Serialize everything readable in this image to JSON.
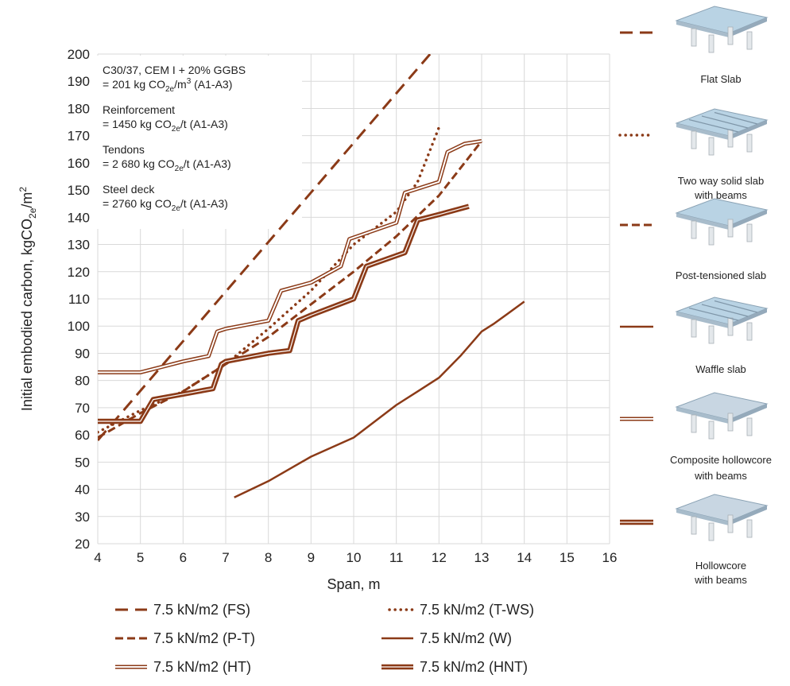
{
  "chart_data": {
    "type": "line",
    "title": "",
    "xlabel": "Span, m",
    "ylabel_main": "Initial embodied carbon, kgCO",
    "ylabel_sub": "2e",
    "ylabel_tail": "/m",
    "ylabel_sup": "2",
    "xlim": [
      4,
      16
    ],
    "ylim": [
      20,
      200
    ],
    "xticks": [
      4,
      5,
      6,
      7,
      8,
      9,
      10,
      11,
      12,
      13,
      14,
      15,
      16
    ],
    "yticks": [
      20,
      30,
      40,
      50,
      60,
      70,
      80,
      90,
      100,
      110,
      120,
      130,
      140,
      150,
      160,
      170,
      180,
      190,
      200
    ],
    "grid": true,
    "legend_position": "bottom",
    "colors": {
      "series": "#8B3A17",
      "grid": "#d9d9d9"
    },
    "notes": [
      {
        "line1": "C30/37, CEM I + 20% GGBS",
        "line2_pre": "= 201 kg CO",
        "line2_sub": "2e",
        "line2_mid": "/m",
        "line2_sup": "3",
        "line2_post": " (A1-A3)"
      },
      {
        "line1": "Reinforcement",
        "line2_pre": "= 1450 kg CO",
        "line2_sub": "2e",
        "line2_mid": "/t (A1-A3)",
        "line2_sup": "",
        "line2_post": ""
      },
      {
        "line1": "Tendons",
        "line2_pre": "= 2 680 kg CO",
        "line2_sub": "2e",
        "line2_mid": "/t (A1-A3)",
        "line2_sup": "",
        "line2_post": ""
      },
      {
        "line1": "Steel deck",
        "line2_pre": "= 2760 kg CO",
        "line2_sub": "2e",
        "line2_mid": "/t (A1-A3)",
        "line2_sup": "",
        "line2_post": ""
      }
    ],
    "series": [
      {
        "name": "7.5 kN/m2 (FS)",
        "style": "long-dash",
        "x": [
          4,
          13
        ],
        "y": [
          58,
          222
        ]
      },
      {
        "name": "7.5 kN/m2 (T-WS)",
        "style": "dotted",
        "x": [
          4,
          5,
          6,
          7,
          8,
          9,
          10,
          11,
          11.5,
          12
        ],
        "y": [
          61,
          69,
          76,
          86,
          99,
          113,
          130,
          142,
          153,
          173
        ]
      },
      {
        "name": "7.5 kN/m2 (P-T)",
        "style": "short-dash",
        "x": [
          4,
          5,
          6,
          7,
          8,
          9,
          10,
          11,
          12,
          13
        ],
        "y": [
          59,
          68,
          76,
          86,
          96,
          108,
          120,
          133,
          148,
          168
        ]
      },
      {
        "name": "7.5 kN/m2 (W)",
        "style": "solid",
        "x": [
          7.2,
          8,
          9,
          10,
          11,
          11.5,
          12,
          12.5,
          13,
          13.3,
          14
        ],
        "y": [
          37,
          43,
          52,
          59,
          71,
          76,
          81,
          89,
          98,
          101,
          109
        ]
      },
      {
        "name": "7.5 kN/m2 (HT)",
        "style": "double-thin",
        "x": [
          4,
          5,
          5.5,
          6,
          6.6,
          6.8,
          7,
          8,
          8.3,
          9,
          9.7,
          9.9,
          11,
          11.2,
          12,
          12.2,
          12.6,
          13
        ],
        "y": [
          83,
          83,
          85,
          87,
          89,
          98,
          99,
          102,
          113,
          116,
          122,
          132,
          138,
          149,
          153,
          164,
          167,
          168
        ]
      },
      {
        "name": "7.5 kN/m2 (HNT)",
        "style": "double-thick",
        "x": [
          4,
          5,
          5.3,
          6,
          6.7,
          6.9,
          7,
          8,
          8.5,
          8.7,
          9,
          10,
          10.3,
          11.2,
          11.5,
          12,
          12.7
        ],
        "y": [
          65,
          65,
          73,
          75,
          77,
          86,
          87,
          90,
          91,
          102,
          104,
          110,
          122,
          127,
          139,
          141,
          144
        ]
      }
    ],
    "side_legend": [
      {
        "style": "long-dash",
        "label1": "Flat Slab",
        "label2": ""
      },
      {
        "style": "dotted",
        "label1": "Two way solid slab",
        "label2": "with beams"
      },
      {
        "style": "short-dash",
        "label1": "Post-tensioned slab",
        "label2": ""
      },
      {
        "style": "solid",
        "label1": "Waffle slab",
        "label2": ""
      },
      {
        "style": "double-thin",
        "label1": "Composite hollowcore",
        "label2": "with beams"
      },
      {
        "style": "double-thick",
        "label1": "Hollowcore",
        "label2": "with beams"
      }
    ]
  }
}
